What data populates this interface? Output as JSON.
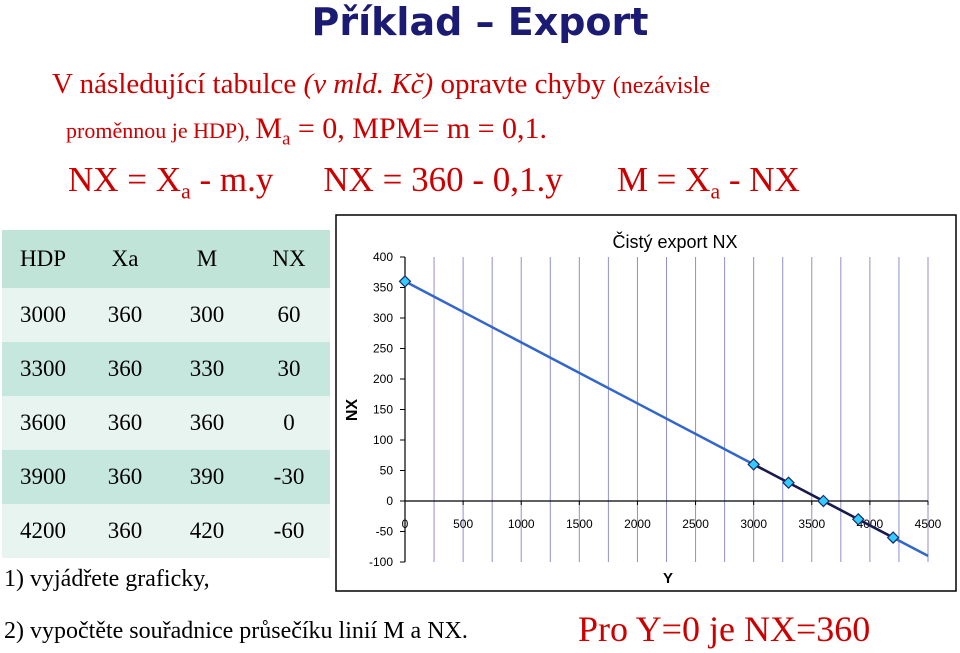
{
  "title": "Příklad – Export",
  "intro": {
    "part1": "V následující tabulce ",
    "part2": "(v mld. Kč)",
    "part3": " opravte chyby ",
    "part4": "(nezávisle",
    "line2_part1": "proměnnou je HDP), ",
    "m_sym": "M",
    "m_sub": "a",
    "line2_part2": " = 0, MPM= m = 0,1."
  },
  "formulas": {
    "f1_pre": "NX = X",
    "f1_sub": "a",
    "f1_post": " - m.y",
    "f2": "NX = 360 - 0,1.y",
    "f3_pre": "M = X",
    "f3_sub": "a",
    "f3_post": " - NX"
  },
  "table": {
    "headers": [
      "HDP",
      "Xa",
      "M",
      "NX"
    ],
    "rows": [
      [
        "3000",
        "360",
        "300",
        "60"
      ],
      [
        "3300",
        "360",
        "330",
        "30"
      ],
      [
        "3600",
        "360",
        "360",
        "0"
      ],
      [
        "3900",
        "360",
        "390",
        "-30"
      ],
      [
        "4200",
        "360",
        "420",
        "-60"
      ]
    ]
  },
  "tasks": {
    "t1": "1) vyjádřete graficky,",
    "t2": "2) vypočtěte souřadnice průsečíku linií M a NX."
  },
  "conclusion": "Pro Y=0 je NX=360",
  "colors": {
    "title": "#1b1b74",
    "accent_red": "#cc0000",
    "line_blue": "#3366cc",
    "marker": "#33ccff",
    "grid": "#9090c8",
    "table_bg": "#c6e7dd"
  },
  "chart_data": {
    "type": "line",
    "title": "Čistý export NX",
    "xlabel": "Y",
    "ylabel": "NX",
    "xlim": [
      0,
      4500
    ],
    "ylim": [
      -100,
      400
    ],
    "x_ticks": [
      "0",
      "500",
      "1000",
      "1500",
      "2000",
      "2500",
      "3000",
      "3500",
      "4000",
      "4500"
    ],
    "y_ticks": [
      "400",
      "350",
      "300",
      "250",
      "200",
      "150",
      "100",
      "50",
      "0",
      "-50",
      "-100"
    ],
    "grid": true,
    "series": [
      {
        "x": [
          0,
          4500
        ],
        "y": [
          360,
          -90
        ],
        "style": "line"
      },
      {
        "x": [
          0,
          3000,
          3300,
          3600,
          3900,
          4200
        ],
        "y": [
          360,
          60,
          30,
          0,
          -30,
          -60
        ],
        "style": "markers"
      }
    ]
  }
}
